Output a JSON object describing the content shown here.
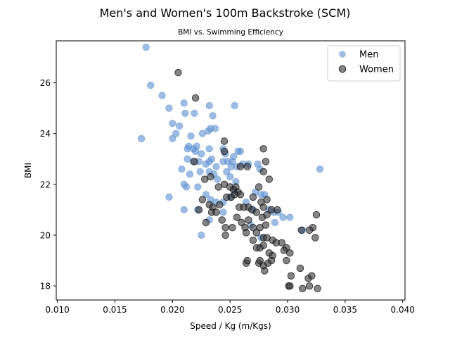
{
  "chart_data": {
    "type": "scatter",
    "title": "Men's and Women's 100m Backstroke (SCM)",
    "subtitle": "BMI vs. Swimming Efficiency",
    "xlabel": "Speed / Kg (m/Kgs)",
    "ylabel": "BMI",
    "xlim": [
      0.0099,
      0.0402
    ],
    "ylim": [
      17.45,
      27.65
    ],
    "x_ticks": [
      0.01,
      0.015,
      0.02,
      0.025,
      0.03,
      0.035,
      0.04
    ],
    "x_tick_labels": [
      "0.010",
      "0.015",
      "0.020",
      "0.025",
      "0.030",
      "0.035",
      "0.040"
    ],
    "y_ticks": [
      18,
      20,
      22,
      24,
      26
    ],
    "y_tick_labels": [
      "18",
      "20",
      "22",
      "24",
      "26"
    ],
    "grid": false,
    "legend_position": "top-right",
    "series": [
      {
        "name": "Men",
        "color": "#5b8fd0",
        "points": [
          [
            0.0177,
            27.4
          ],
          [
            0.0181,
            25.9
          ],
          [
            0.0191,
            25.5
          ],
          [
            0.0173,
            23.8
          ],
          [
            0.0197,
            25.0
          ],
          [
            0.02,
            24.4
          ],
          [
            0.0203,
            24.0
          ],
          [
            0.0206,
            24.3
          ],
          [
            0.02,
            23.8
          ],
          [
            0.021,
            25.2
          ],
          [
            0.0211,
            24.8
          ],
          [
            0.0219,
            24.8
          ],
          [
            0.0232,
            25.1
          ],
          [
            0.0254,
            25.1
          ],
          [
            0.0235,
            24.7
          ],
          [
            0.0233,
            24.2
          ],
          [
            0.0237,
            24.2
          ],
          [
            0.0226,
            24.0
          ],
          [
            0.0231,
            24.1
          ],
          [
            0.0216,
            23.9
          ],
          [
            0.0214,
            23.5
          ],
          [
            0.0218,
            23.4
          ],
          [
            0.0213,
            23.4
          ],
          [
            0.0221,
            23.5
          ],
          [
            0.022,
            23.3
          ],
          [
            0.0225,
            23.2
          ],
          [
            0.0232,
            23.4
          ],
          [
            0.0234,
            23.0
          ],
          [
            0.0244,
            23.4
          ],
          [
            0.0246,
            23.2
          ],
          [
            0.0253,
            23.1
          ],
          [
            0.0257,
            23.3
          ],
          [
            0.0259,
            23.3
          ],
          [
            0.0213,
            23.0
          ],
          [
            0.0218,
            22.9
          ],
          [
            0.0223,
            22.9
          ],
          [
            0.0229,
            22.8
          ],
          [
            0.0232,
            22.9
          ],
          [
            0.0238,
            22.7
          ],
          [
            0.0244,
            22.9
          ],
          [
            0.0248,
            22.9
          ],
          [
            0.0251,
            22.7
          ],
          [
            0.0256,
            22.7
          ],
          [
            0.0252,
            22.9
          ],
          [
            0.0261,
            22.8
          ],
          [
            0.0266,
            22.8
          ],
          [
            0.0274,
            22.8
          ],
          [
            0.0276,
            22.6
          ],
          [
            0.0208,
            22.6
          ],
          [
            0.0215,
            22.4
          ],
          [
            0.0224,
            22.5
          ],
          [
            0.0232,
            22.5
          ],
          [
            0.0236,
            22.4
          ],
          [
            0.0239,
            22.2
          ],
          [
            0.0247,
            22.5
          ],
          [
            0.025,
            22.3
          ],
          [
            0.0255,
            22.1
          ],
          [
            0.021,
            22.0
          ],
          [
            0.0212,
            21.9
          ],
          [
            0.0222,
            21.9
          ],
          [
            0.0229,
            21.6
          ],
          [
            0.0233,
            21.4
          ],
          [
            0.0238,
            21.3
          ],
          [
            0.0244,
            21.3
          ],
          [
            0.025,
            21.5
          ],
          [
            0.0197,
            21.5
          ],
          [
            0.021,
            21.0
          ],
          [
            0.0222,
            21.0
          ],
          [
            0.0232,
            20.6
          ],
          [
            0.0244,
            20.9
          ],
          [
            0.0254,
            21.7
          ],
          [
            0.0264,
            21.3
          ],
          [
            0.027,
            21.0
          ],
          [
            0.0277,
            21.6
          ],
          [
            0.028,
            21.6
          ],
          [
            0.0272,
            21.7
          ],
          [
            0.0284,
            21.0
          ],
          [
            0.0288,
            20.9
          ],
          [
            0.0292,
            20.9
          ],
          [
            0.0296,
            20.7
          ],
          [
            0.0302,
            20.7
          ],
          [
            0.0289,
            20.5
          ],
          [
            0.0268,
            20.4
          ],
          [
            0.0277,
            19.9
          ],
          [
            0.0225,
            20.0
          ],
          [
            0.0313,
            20.2
          ],
          [
            0.0328,
            22.6
          ]
        ]
      },
      {
        "name": "Women",
        "color": "#333333",
        "points": [
          [
            0.0205,
            26.4
          ],
          [
            0.022,
            25.4
          ],
          [
            0.0219,
            22.9
          ],
          [
            0.0245,
            23.7
          ],
          [
            0.0245,
            23.3
          ],
          [
            0.0279,
            23.4
          ],
          [
            0.0281,
            22.9
          ],
          [
            0.0279,
            22.5
          ],
          [
            0.0284,
            22.2
          ],
          [
            0.0228,
            22.2
          ],
          [
            0.0233,
            22.3
          ],
          [
            0.024,
            21.9
          ],
          [
            0.0245,
            22.0
          ],
          [
            0.025,
            21.9
          ],
          [
            0.0253,
            21.8
          ],
          [
            0.0255,
            21.9
          ],
          [
            0.0257,
            21.7
          ],
          [
            0.0259,
            21.6
          ],
          [
            0.0259,
            22.7
          ],
          [
            0.0265,
            22.7
          ],
          [
            0.0275,
            21.9
          ],
          [
            0.027,
            21.5
          ],
          [
            0.0277,
            21.3
          ],
          [
            0.0279,
            21.1
          ],
          [
            0.0282,
            21.4
          ],
          [
            0.0226,
            21.4
          ],
          [
            0.0232,
            21.2
          ],
          [
            0.0235,
            21.1
          ],
          [
            0.0241,
            21.2
          ],
          [
            0.0247,
            21.5
          ],
          [
            0.0251,
            21.5
          ],
          [
            0.0254,
            21.6
          ],
          [
            0.0258,
            21.1
          ],
          [
            0.0262,
            21.1
          ],
          [
            0.0266,
            21.1
          ],
          [
            0.0269,
            21.0
          ],
          [
            0.0273,
            20.9
          ],
          [
            0.0278,
            20.7
          ],
          [
            0.0282,
            20.8
          ],
          [
            0.0223,
            21.0
          ],
          [
            0.0229,
            20.5
          ],
          [
            0.0234,
            20.9
          ],
          [
            0.0238,
            20.9
          ],
          [
            0.0243,
            20.6
          ],
          [
            0.0246,
            20.3
          ],
          [
            0.0252,
            20.3
          ],
          [
            0.0256,
            20.7
          ],
          [
            0.026,
            20.5
          ],
          [
            0.0263,
            20.3
          ],
          [
            0.0266,
            20.6
          ],
          [
            0.027,
            20.3
          ],
          [
            0.0273,
            20.1
          ],
          [
            0.0276,
            20.3
          ],
          [
            0.0279,
            19.9
          ],
          [
            0.0282,
            19.9
          ],
          [
            0.0287,
            19.8
          ],
          [
            0.029,
            19.7
          ],
          [
            0.0295,
            19.7
          ],
          [
            0.0299,
            19.5
          ],
          [
            0.0281,
            20.4
          ],
          [
            0.0286,
            21.0
          ],
          [
            0.0291,
            21.0
          ],
          [
            0.0246,
            20.0
          ],
          [
            0.0264,
            20.1
          ],
          [
            0.027,
            19.8
          ],
          [
            0.0273,
            19.5
          ],
          [
            0.0276,
            19.5
          ],
          [
            0.0279,
            19.6
          ],
          [
            0.0284,
            19.3
          ],
          [
            0.0287,
            19.2
          ],
          [
            0.0297,
            19.4
          ],
          [
            0.0302,
            19.3
          ],
          [
            0.0299,
            19.0
          ],
          [
            0.0264,
            18.9
          ],
          [
            0.0265,
            19.0
          ],
          [
            0.0275,
            18.9
          ],
          [
            0.0279,
            18.8
          ],
          [
            0.0283,
            18.9
          ],
          [
            0.0286,
            19.0
          ],
          [
            0.028,
            18.6
          ],
          [
            0.0276,
            19.0
          ],
          [
            0.0311,
            18.7
          ],
          [
            0.0318,
            18.3
          ],
          [
            0.0303,
            18.4
          ],
          [
            0.0301,
            18.0
          ],
          [
            0.0302,
            18.0
          ],
          [
            0.0313,
            17.9
          ],
          [
            0.0319,
            18.0
          ],
          [
            0.0321,
            18.4
          ],
          [
            0.0324,
            19.9
          ],
          [
            0.0325,
            20.8
          ],
          [
            0.0322,
            20.3
          ],
          [
            0.0319,
            20.2
          ],
          [
            0.0326,
            17.9
          ],
          [
            0.0312,
            20.2
          ]
        ]
      }
    ]
  }
}
